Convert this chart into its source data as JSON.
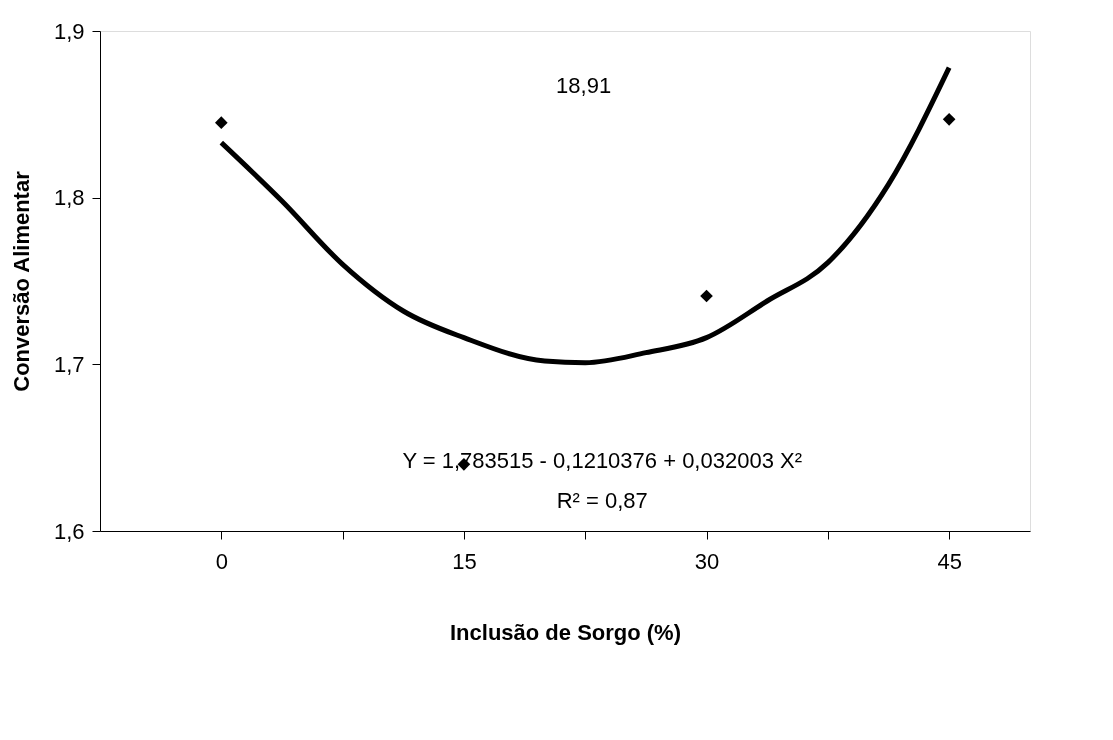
{
  "chart_data": {
    "type": "scatter",
    "xlabel": "Inclusão de Sorgo (%)",
    "ylabel": "Conversão Alimentar",
    "xlim": [
      -7.5,
      50
    ],
    "ylim": [
      1.6,
      1.9
    ],
    "xticks": [
      0,
      {
        "value": 7.5,
        "label": null
      },
      15,
      {
        "value": 22.5,
        "label": null
      },
      30,
      {
        "value": 37.5,
        "label": null
      },
      45
    ],
    "yticks": [
      {
        "value": 1.6,
        "label": "1,6"
      },
      {
        "value": 1.7,
        "label": "1,7"
      },
      {
        "value": 1.8,
        "label": "1,8"
      },
      {
        "value": 1.9,
        "label": "1,9"
      }
    ],
    "grid": false,
    "legend": false,
    "series": [
      {
        "color": "#000000",
        "marker": "diamond",
        "x": [
          0,
          15,
          30,
          45
        ],
        "values": [
          1.845,
          1.64,
          1.741,
          1.847
        ]
      },
      {
        "type": "line",
        "color": "#000000",
        "line_style": "solid",
        "x": [
          0,
          3.75,
          7.5,
          11.25,
          15,
          20,
          22.5,
          26.25,
          30,
          33.75,
          37.5,
          41.25,
          45
        ],
        "values": [
          1.833,
          1.798,
          1.76,
          1.732,
          1.716,
          1.702,
          1.701,
          1.707,
          1.716,
          1.738,
          1.761,
          1.808,
          1.878
        ]
      }
    ],
    "annotations": [
      "18,91",
      "Y = 1,783515 - 0,1210376 + 0,032003 X²",
      "R² = 0,87"
    ]
  }
}
